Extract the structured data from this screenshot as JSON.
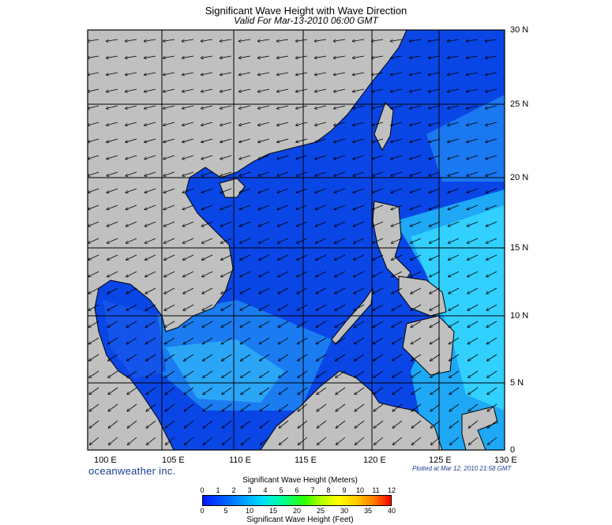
{
  "header": {
    "title": "Significant Wave Height with Wave Direction",
    "subtitle": "Valid For Mar-13-2010 06:00 GMT"
  },
  "map": {
    "lat_labels": [
      "30 N",
      "25 N",
      "20 N",
      "15 N",
      "10 N",
      "5 N",
      "0"
    ],
    "lon_labels": [
      "100 E",
      "105 E",
      "110 E",
      "115 E",
      "120 E",
      "125 E",
      "130 E"
    ],
    "colors": {
      "land": "#c0c0c0",
      "grid": "#000000",
      "deep_wave": "#0a46e6",
      "light_wave": "#20d8ff"
    }
  },
  "footer": {
    "brand": "oceanweather inc.",
    "plotted": "Plotted at Mar 12, 2010 21:58 GMT"
  },
  "colorbar": {
    "title_top": "Significant Wave Height (Meters)",
    "title_bottom": "Significant Wave Height (Feet)",
    "ticks_m": [
      "0",
      "1",
      "2",
      "3",
      "4",
      "5",
      "6",
      "7",
      "8",
      "9",
      "10",
      "11",
      "12"
    ],
    "ticks_ft": [
      "0",
      "5",
      "10",
      "15",
      "20",
      "25",
      "30",
      "35",
      "40"
    ]
  }
}
